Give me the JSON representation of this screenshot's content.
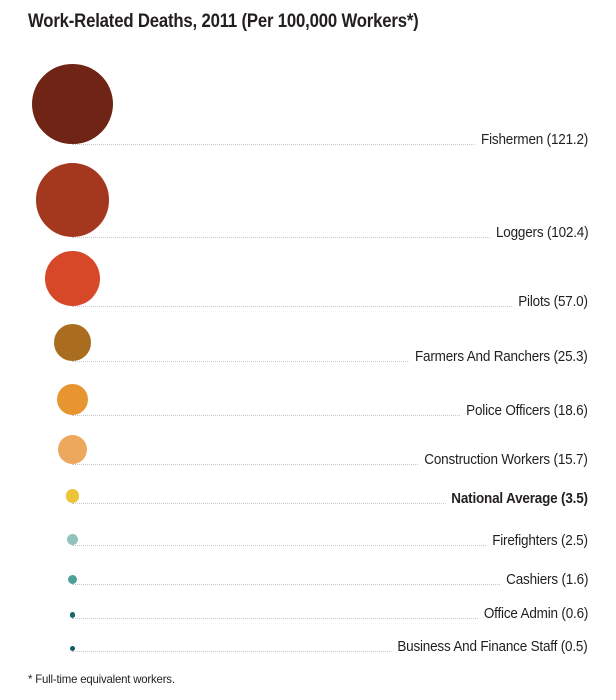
{
  "title": "Work-Related Deaths, 2011 (Per 100,000 Workers*)",
  "footnote": "* Full-time equivalent workers.",
  "chart_data": {
    "type": "bubble",
    "title": "Work-Related Deaths, 2011 (Per 100,000 Workers*)",
    "unit": "deaths per 100,000 full-time equivalent workers",
    "size_encoding": "circle area proportional to value",
    "layout_hints": {
      "rows_sorted": "descending by value",
      "labels": "right-aligned, connected by dotted leader lines",
      "background": "#ffffff",
      "text_color": "#231f20",
      "leader_line_color": "#c9c9c9"
    },
    "points": [
      {
        "label": "Fishermen",
        "value": 121.2,
        "color": "#6f2415",
        "bold": false
      },
      {
        "label": "Loggers",
        "value": 102.4,
        "color": "#a4381e",
        "bold": false
      },
      {
        "label": "Pilots",
        "value": 57.0,
        "color": "#d74829",
        "bold": false
      },
      {
        "label": "Farmers And Ranchers",
        "value": 25.3,
        "color": "#aa6c1f",
        "bold": false
      },
      {
        "label": "Police Officers",
        "value": 18.6,
        "color": "#e7952e",
        "bold": false
      },
      {
        "label": "Construction Workers",
        "value": 15.7,
        "color": "#eca95e",
        "bold": false
      },
      {
        "label": "National Average",
        "value": 3.5,
        "color": "#edc437",
        "bold": true
      },
      {
        "label": "Firefighters",
        "value": 2.5,
        "color": "#93c4bc",
        "bold": false
      },
      {
        "label": "Cashiers",
        "value": 1.6,
        "color": "#4f9f99",
        "bold": false
      },
      {
        "label": "Office Admin",
        "value": 0.6,
        "color": "#166969",
        "bold": false
      },
      {
        "label": "Business And Finance Staff",
        "value": 0.5,
        "color": "#115e5e",
        "bold": false
      }
    ]
  }
}
